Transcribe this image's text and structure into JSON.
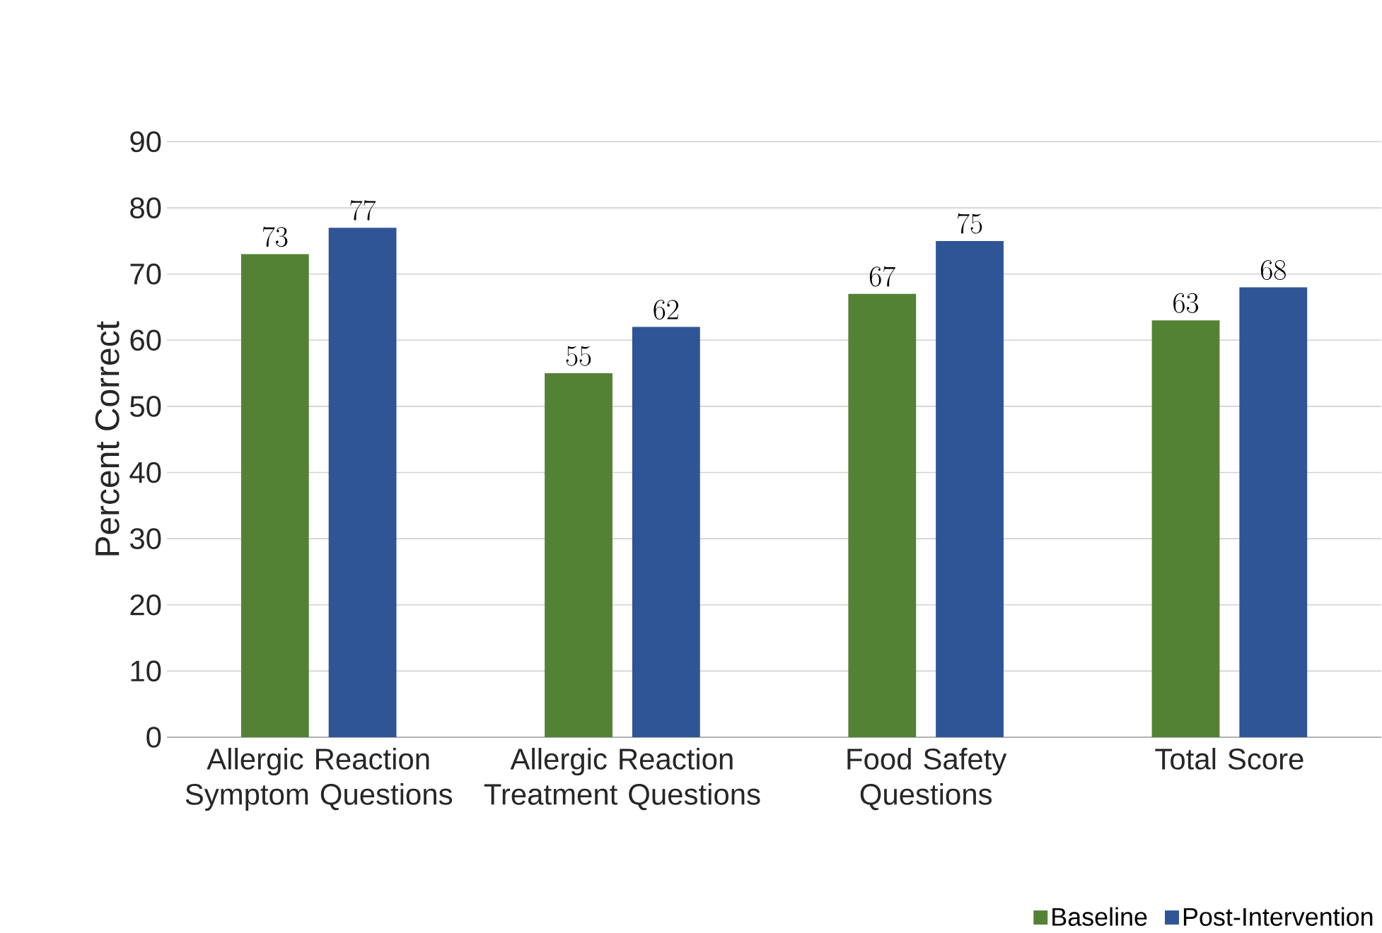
{
  "chart_data": {
    "type": "bar",
    "ylabel": "Percent Correct",
    "categories": [
      "Allergic Reaction Symptom Questions",
      "Allergic Reaction Treatment Questions",
      "Food Safety Questions",
      "Total Score"
    ],
    "series": [
      {
        "name": "Baseline",
        "color": "#548235",
        "values": [
          73,
          55,
          67,
          63
        ]
      },
      {
        "name": "Post-Intervention",
        "color": "#2f5597",
        "values": [
          77,
          62,
          75,
          68
        ]
      }
    ],
    "ylim": [
      0,
      90
    ],
    "yticks": [
      0,
      10,
      20,
      30,
      40,
      50,
      60,
      70,
      80,
      90
    ],
    "grid": "y",
    "legend": "bottom right",
    "data_labels": true
  }
}
